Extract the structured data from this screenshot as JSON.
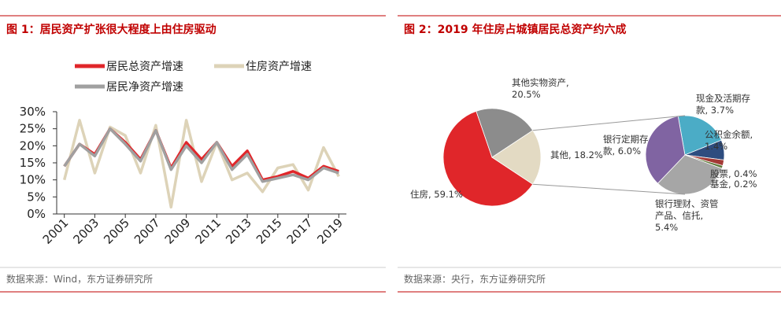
{
  "chart_data": [
    {
      "type": "line",
      "title": "图 1：居民资产扩张很大程度上由住房驱动",
      "source": "数据来源：Wind，东方证券研究所",
      "x": [
        2001,
        2002,
        2003,
        2004,
        2005,
        2006,
        2007,
        2008,
        2009,
        2010,
        2011,
        2012,
        2013,
        2014,
        2015,
        2016,
        2017,
        2018,
        2019
      ],
      "xlim": [
        2000.5,
        2019.5
      ],
      "xticks": [
        2001,
        2003,
        2005,
        2007,
        2009,
        2011,
        2013,
        2015,
        2017,
        2019
      ],
      "ylim": [
        0,
        30
      ],
      "yticks": [
        {
          "value": 0,
          "label": "0%"
        },
        {
          "value": 5,
          "label": "5%"
        },
        {
          "value": 10,
          "label": "10%"
        },
        {
          "value": 15,
          "label": "15%"
        },
        {
          "value": 20,
          "label": "20%"
        },
        {
          "value": 25,
          "label": "25%"
        },
        {
          "value": 30,
          "label": "30%"
        }
      ],
      "series": [
        {
          "name": "居民总资产增速",
          "color": "#e0262a",
          "values": [
            14,
            20.5,
            17.5,
            25,
            21,
            16,
            24.5,
            13.5,
            21,
            16,
            21,
            14,
            18.5,
            10,
            11,
            12.5,
            10.5,
            14,
            12.5
          ]
        },
        {
          "name": "住房资产增速",
          "color": "#ddd3b8",
          "values": [
            10,
            27.5,
            12,
            25.5,
            23,
            12,
            26,
            2,
            27.5,
            9.5,
            21,
            10,
            12,
            6.5,
            13.5,
            14.5,
            7,
            19.5,
            11
          ]
        },
        {
          "name": "居民净资产增速",
          "color": "#a0a0a0",
          "values": [
            14,
            20.5,
            17,
            25,
            20.5,
            15.5,
            24.5,
            13,
            20,
            15,
            21,
            13,
            17.5,
            9.5,
            10.5,
            11.5,
            10,
            13.5,
            12
          ]
        }
      ]
    },
    {
      "type": "pie",
      "title": "图 2：2019 年住房占城镇居民总资产约六成",
      "source": "数据来源：央行，东方证券研究所",
      "categories": [
        "住房",
        "其他实物资产",
        "其他"
      ],
      "values": [
        59.1,
        20.5,
        18.2
      ],
      "value_labels": [
        "住房, 59.1%",
        "其他实物资产, 20.5%",
        "其他, 18.2%"
      ],
      "colors": [
        "#e0262a",
        "#8c8c8c",
        "#e3dac3"
      ],
      "breakdown": {
        "categories": [
          "现金及活期存款",
          "公积金余额",
          "股票",
          "基金",
          "银行理财、资管产品、信托",
          "银行定期存款"
        ],
        "values": [
          3.7,
          1.4,
          0.4,
          0.2,
          5.4,
          6.0
        ],
        "value_labels": [
          "现金及活期存款, 3.7%",
          "公积金余额, 1.4%",
          "股票, 0.4%",
          "基金, 0.2%",
          "银行理财、资管产品、信托, 5.4%",
          "银行定期存款, 6.0%"
        ],
        "colors": [
          "#4bacc6",
          "#2e4d7f",
          "#a33a36",
          "#5d7a3a",
          "#a6a6a6",
          "#8064a2"
        ]
      }
    }
  ]
}
